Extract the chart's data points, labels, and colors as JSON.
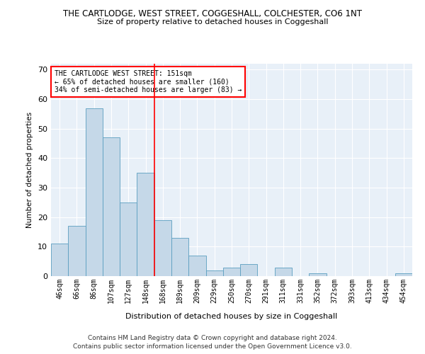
{
  "title": "THE CARTLODGE, WEST STREET, COGGESHALL, COLCHESTER, CO6 1NT",
  "subtitle": "Size of property relative to detached houses in Coggeshall",
  "xlabel": "Distribution of detached houses by size in Coggeshall",
  "ylabel": "Number of detached properties",
  "categories": [
    "46sqm",
    "66sqm",
    "86sqm",
    "107sqm",
    "127sqm",
    "148sqm",
    "168sqm",
    "189sqm",
    "209sqm",
    "229sqm",
    "250sqm",
    "270sqm",
    "291sqm",
    "311sqm",
    "331sqm",
    "352sqm",
    "372sqm",
    "393sqm",
    "413sqm",
    "434sqm",
    "454sqm"
  ],
  "values": [
    11,
    17,
    57,
    47,
    25,
    35,
    19,
    13,
    7,
    2,
    3,
    4,
    0,
    3,
    0,
    1,
    0,
    0,
    0,
    0,
    1
  ],
  "bar_color": "#c5d8e8",
  "bar_edge_color": "#5a9ec0",
  "ylim": [
    0,
    72
  ],
  "yticks": [
    0,
    10,
    20,
    30,
    40,
    50,
    60,
    70
  ],
  "annotation_title": "THE CARTLODGE WEST STREET: 151sqm",
  "annotation_line1": "← 65% of detached houses are smaller (160)",
  "annotation_line2": "34% of semi-detached houses are larger (83) →",
  "background_color": "#e8f0f8",
  "footer_line1": "Contains HM Land Registry data © Crown copyright and database right 2024.",
  "footer_line2": "Contains public sector information licensed under the Open Government Licence v3.0."
}
